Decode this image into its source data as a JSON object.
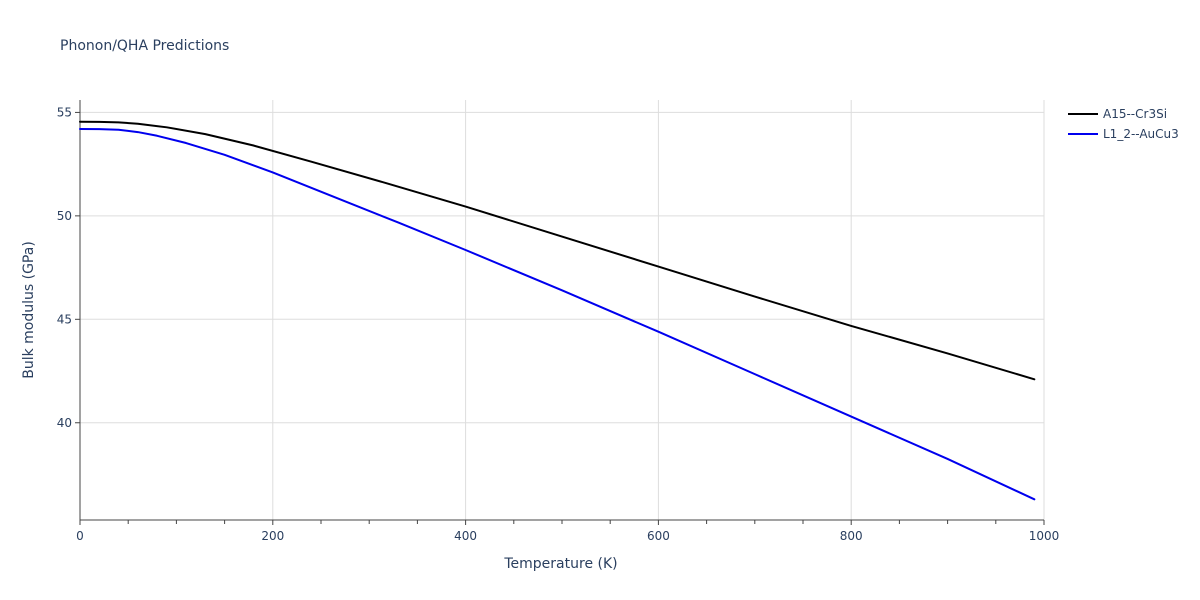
{
  "chart_data": {
    "type": "line",
    "title": "Phonon/QHA Predictions",
    "xlabel": "Temperature (K)",
    "ylabel": "Bulk modulus (GPa)",
    "xlim": [
      0,
      1000
    ],
    "ylim": [
      35.3,
      55.6
    ],
    "x_ticks": [
      0,
      200,
      400,
      600,
      800,
      1000
    ],
    "x_tick_labels": [
      "0",
      "200",
      "400",
      "600",
      "800",
      "1000"
    ],
    "x_minor_ticks": [
      50,
      100,
      150,
      250,
      300,
      350,
      450,
      500,
      550,
      650,
      700,
      750,
      850,
      900,
      950
    ],
    "y_ticks": [
      40,
      45,
      50,
      55
    ],
    "y_tick_labels": [
      "40",
      "45",
      "50",
      "55"
    ],
    "grid": true,
    "legend_position": "top-right",
    "series": [
      {
        "name": "A15--Cr3Si",
        "color": "#000000",
        "x": [
          0,
          20,
          40,
          60,
          90,
          130,
          180,
          240,
          320,
          400,
          500,
          600,
          700,
          800,
          900,
          990
        ],
        "y": [
          54.55,
          54.54,
          54.52,
          54.45,
          54.28,
          53.95,
          53.4,
          52.62,
          51.55,
          50.45,
          49.0,
          47.55,
          46.1,
          44.68,
          43.35,
          42.1
        ]
      },
      {
        "name": "L1_2--AuCu3",
        "color": "#0000ee",
        "x": [
          0,
          20,
          40,
          60,
          80,
          110,
          150,
          200,
          260,
          330,
          400,
          500,
          600,
          700,
          800,
          900,
          990
        ],
        "y": [
          54.2,
          54.19,
          54.16,
          54.05,
          53.87,
          53.52,
          52.95,
          52.1,
          50.98,
          49.68,
          48.35,
          46.4,
          44.4,
          42.35,
          40.3,
          38.25,
          36.3
        ]
      }
    ]
  }
}
